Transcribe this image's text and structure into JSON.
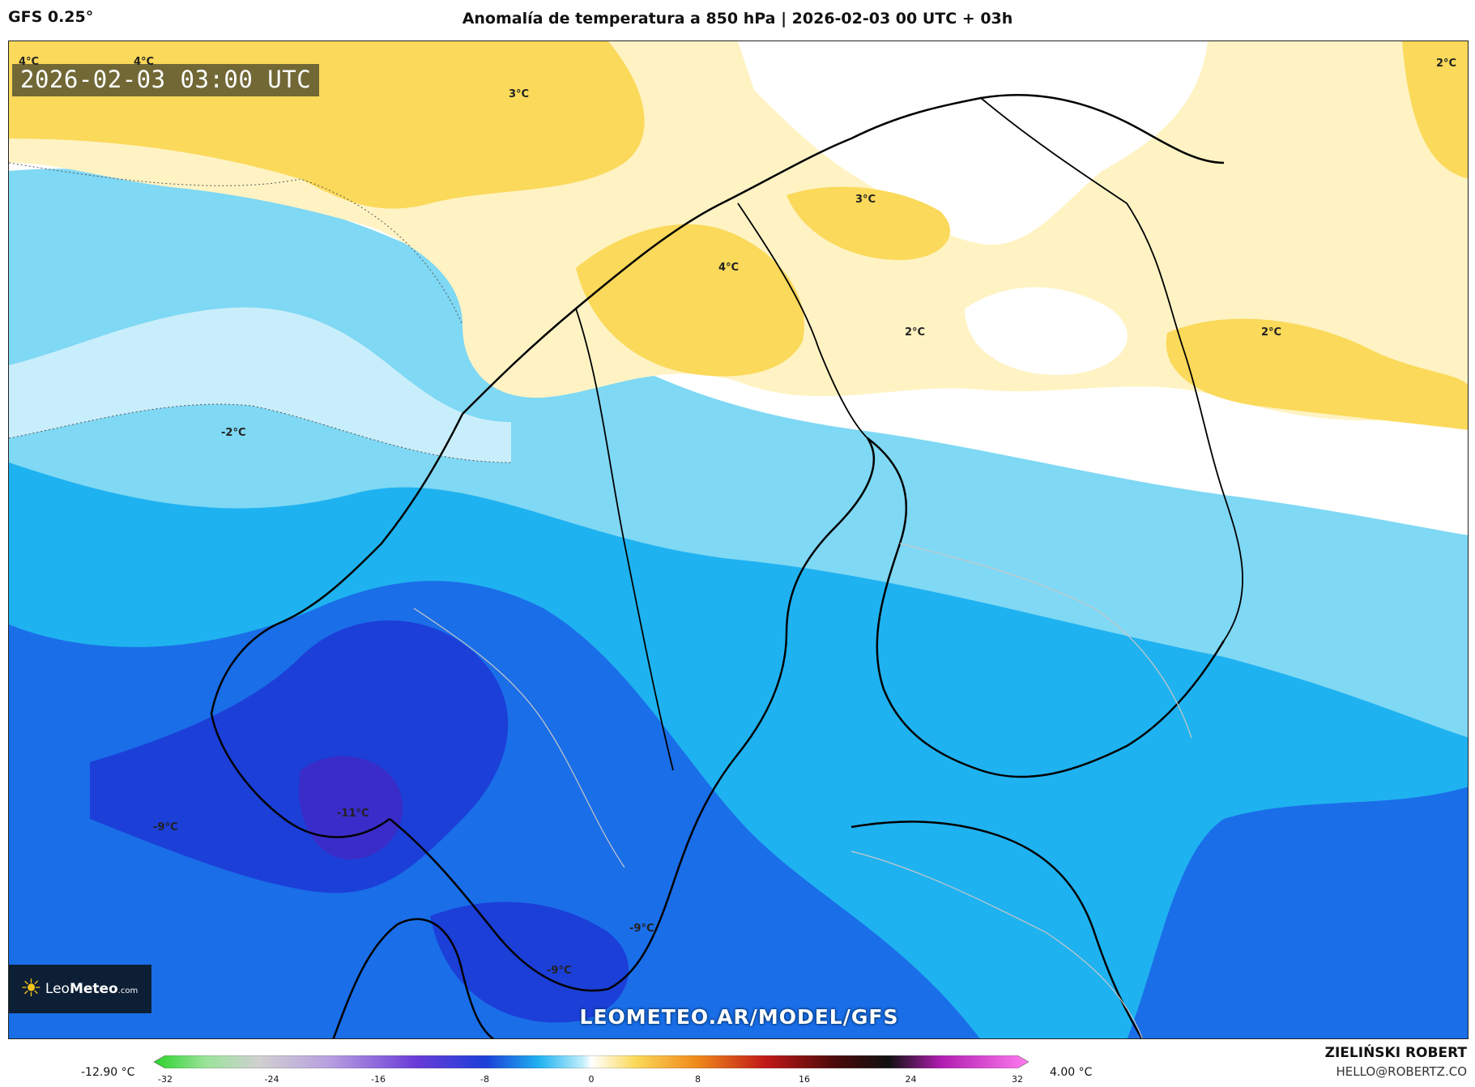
{
  "header": {
    "model": "GFS 0.25°",
    "title": "Anomalía de temperatura a 850 hPa | 2026-02-03 00 UTC + 03h"
  },
  "map": {
    "timestamp": "2026-02-03 03:00 UTC",
    "site_link": "LEOMETEO.AR/MODEL/GFS",
    "logo": {
      "name_part1": "Leo",
      "name_part2": "Meteo",
      "suffix": ".com",
      "icon": "sun-icon"
    },
    "contour_labels": [
      {
        "text": "4°C"
      },
      {
        "text": "4°C"
      },
      {
        "text": "3°C"
      },
      {
        "text": "2°C"
      },
      {
        "text": "3°C"
      },
      {
        "text": "4°C"
      },
      {
        "text": "2°C"
      },
      {
        "text": "2°C"
      },
      {
        "text": "-2°C"
      },
      {
        "text": "-9°C"
      },
      {
        "text": "-11°C"
      },
      {
        "text": "-9°C"
      },
      {
        "text": "-9°C"
      }
    ]
  },
  "colorbar": {
    "min_label": "-12.90 °C",
    "max_label": "4.00 °C",
    "ticks": [
      "-32",
      "-24",
      "-16",
      "-8",
      "0",
      "8",
      "16",
      "24",
      "32"
    ],
    "range": [
      -32,
      32
    ]
  },
  "credit": {
    "name": "ZIELIŃSKI ROBERT",
    "email": "HELLO@ROBERTZ.CO"
  }
}
